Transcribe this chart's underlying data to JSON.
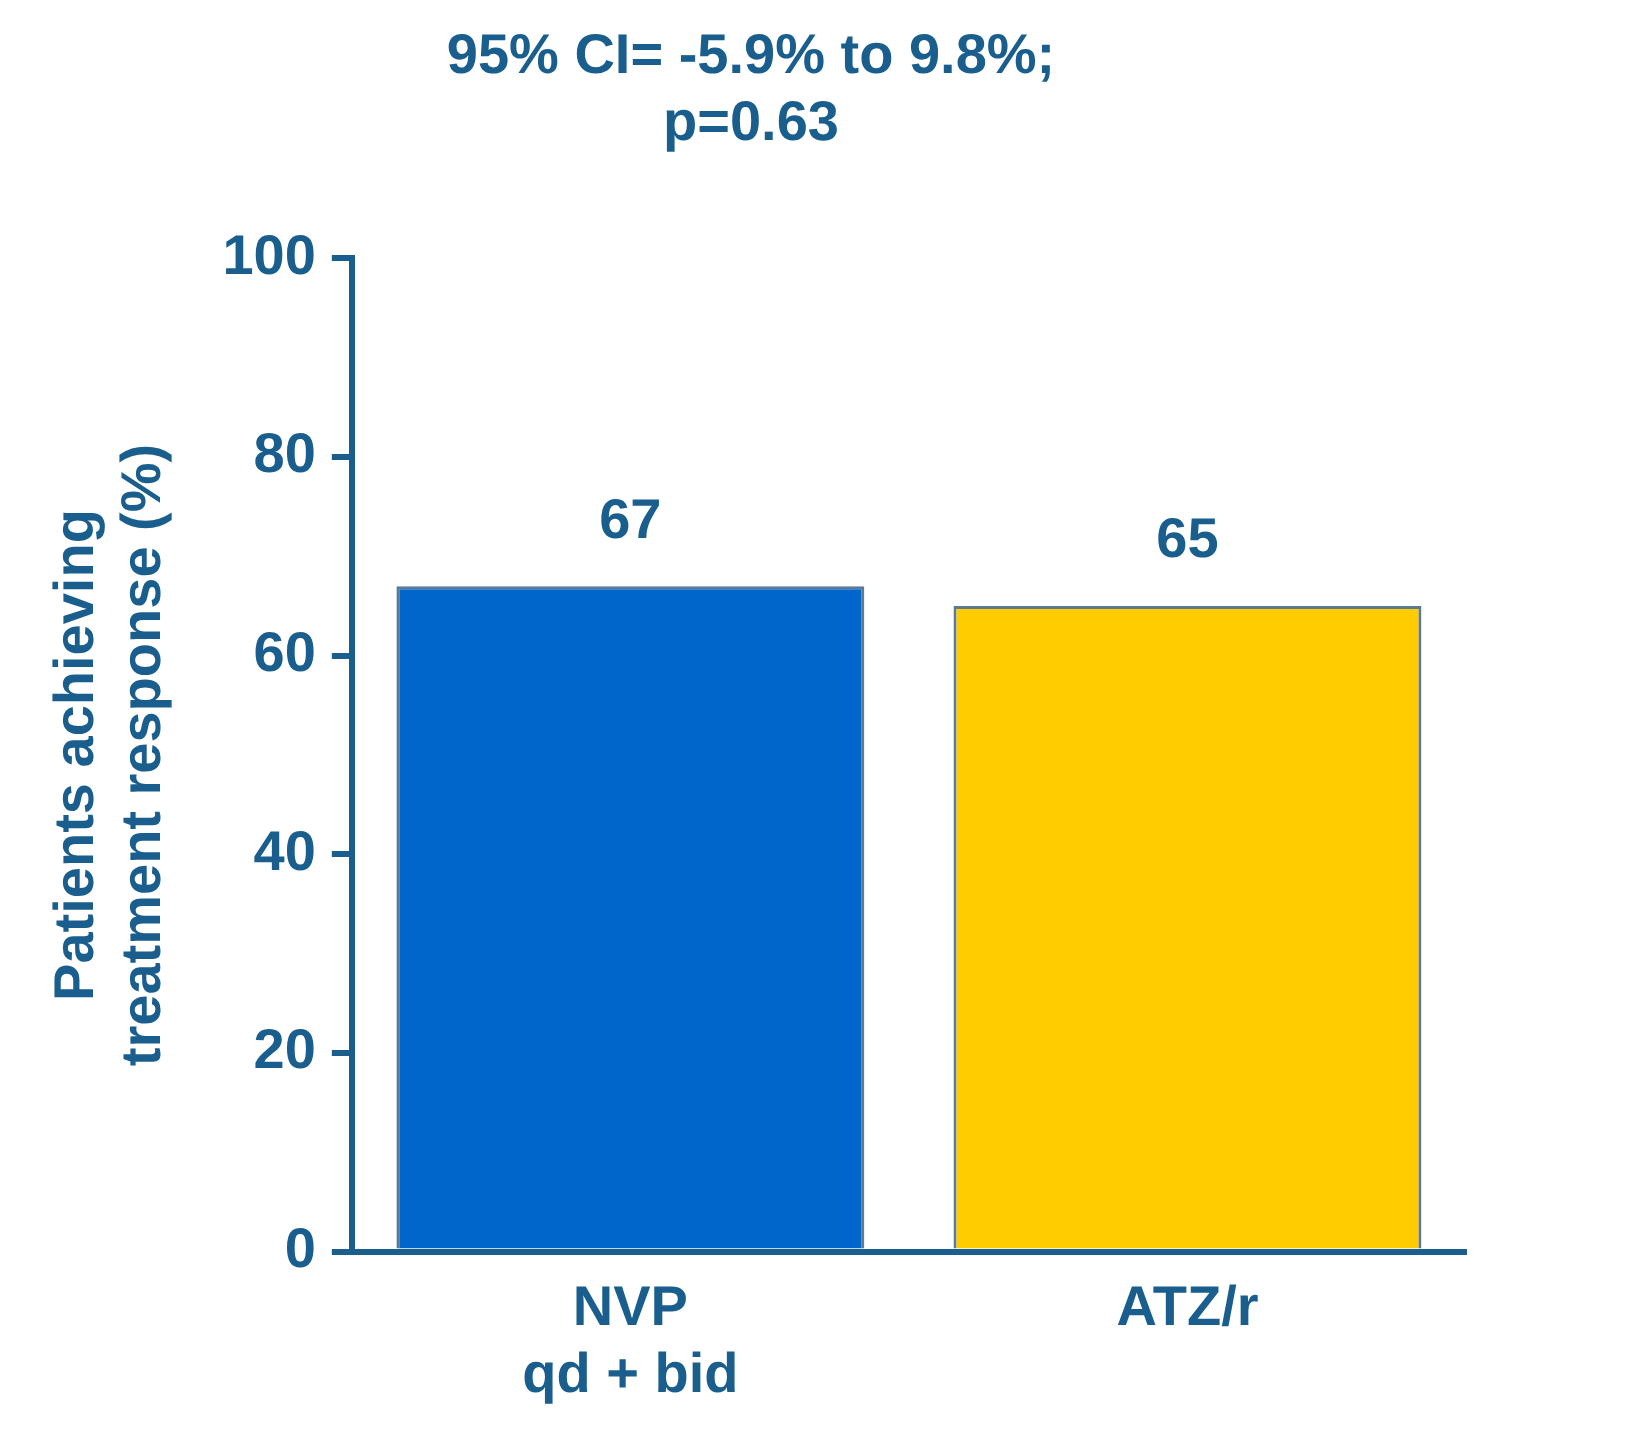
{
  "chart_data": {
    "type": "bar",
    "title": "95% CI= -5.9% to 9.8%;\np=0.63",
    "ylabel": "Patients achieving\ntreatment response (%)",
    "categories": [
      "NVP\nqd + bid",
      "ATZ/r"
    ],
    "values": [
      67,
      65
    ],
    "colors": [
      "#0066cc",
      "#ffcc00"
    ],
    "ylim": [
      0,
      100
    ],
    "yticks": [
      0,
      20,
      40,
      60,
      80,
      100
    ],
    "grid": false,
    "legend": false,
    "data_labels": true
  }
}
